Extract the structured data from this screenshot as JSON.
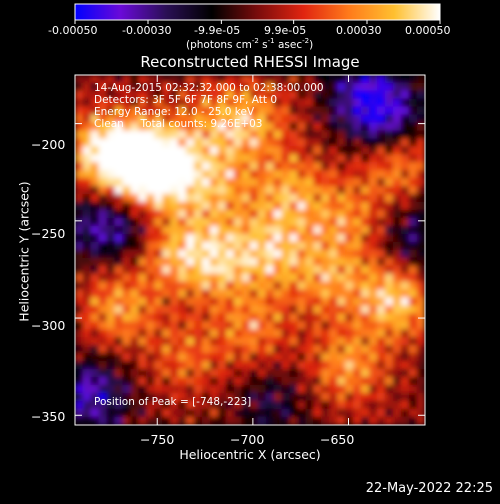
{
  "colorbar": {
    "tick_labels": [
      "-0.00050",
      "-0.00030",
      "-9.9e-05",
      "9.9e-05",
      "0.00030",
      "0.00050"
    ],
    "tick_values": [
      -0.0005,
      -0.0003,
      -9.9e-05,
      9.9e-05,
      0.0003,
      0.0005
    ],
    "range": [
      -0.0005,
      0.0005
    ],
    "unit_parts": [
      "(photons cm",
      "-2",
      " s",
      "-1",
      " asec",
      "-2",
      ")"
    ],
    "colormap": [
      "#0000ff",
      "#6a0ad8",
      "#2a0f55",
      "#000000",
      "#7a0c0c",
      "#e02410",
      "#ff7a1a",
      "#ffc030",
      "#ffffff"
    ]
  },
  "plot": {
    "title": "Reconstructed RHESSI Image",
    "info_lines": [
      "14-Aug-2015 02:32:32.000 to 02:38:00.000",
      "Detectors: 3F 5F 6F 7F 8F 9F, Att 0",
      "Energy Range: 12.0 - 25.0 keV",
      "Clean     Total counts: 9.26E+03"
    ],
    "peak_label": "Position of Peak = [-748,-223]"
  },
  "chart_data": {
    "type": "heatmap",
    "title": "Reconstructed RHESSI Image",
    "xlabel": "Heliocentric X (arcsec)",
    "ylabel": "Heliocentric Y (arcsec)",
    "xlim": [
      -793,
      -610
    ],
    "ylim": [
      -355,
      -175
    ],
    "x_ticks": [
      -750,
      -700,
      -650
    ],
    "x_tick_labels": [
      "−750",
      "−700",
      "−650"
    ],
    "y_ticks": [
      -200,
      -250,
      -300,
      -350
    ],
    "y_tick_labels": [
      "−200",
      "−250",
      "−300",
      "−350"
    ],
    "peak_position": [
      -748,
      -223
    ],
    "sources": [
      {
        "x": -760,
        "y": -220,
        "value": 0.0005
      },
      {
        "x": -748,
        "y": -223,
        "value": 0.0005
      },
      {
        "x": -780,
        "y": -215,
        "value": 0.0004
      },
      {
        "x": -700,
        "y": -200,
        "value": 0.00028
      },
      {
        "x": -720,
        "y": -232,
        "value": 0.0003
      },
      {
        "x": -680,
        "y": -235,
        "value": 0.0003
      },
      {
        "x": -690,
        "y": -265,
        "value": 0.00035
      },
      {
        "x": -720,
        "y": -270,
        "value": 0.00038
      },
      {
        "x": -745,
        "y": -265,
        "value": 0.0003
      },
      {
        "x": -650,
        "y": -250,
        "value": 0.00025
      },
      {
        "x": -660,
        "y": -280,
        "value": 0.00028
      },
      {
        "x": -625,
        "y": -290,
        "value": 0.00042
      },
      {
        "x": -625,
        "y": -220,
        "value": 0.0003
      },
      {
        "x": -770,
        "y": -295,
        "value": 0.0003
      },
      {
        "x": -700,
        "y": -305,
        "value": 0.00025
      },
      {
        "x": -735,
        "y": -320,
        "value": 0.0002
      },
      {
        "x": -650,
        "y": -325,
        "value": 0.0003
      },
      {
        "x": -720,
        "y": -200,
        "value": 0.0002
      },
      {
        "x": -765,
        "y": -255,
        "value": -0.00025
      },
      {
        "x": -785,
        "y": -340,
        "value": -0.00035
      },
      {
        "x": -640,
        "y": -185,
        "value": -0.00035
      },
      {
        "x": -630,
        "y": -200,
        "value": -0.0003
      },
      {
        "x": -615,
        "y": -260,
        "value": -0.00025
      },
      {
        "x": -690,
        "y": -345,
        "value": -0.00018
      },
      {
        "x": -785,
        "y": -250,
        "value": -0.0002
      }
    ]
  },
  "footer": {
    "date": "22-May-2022 22:25"
  }
}
